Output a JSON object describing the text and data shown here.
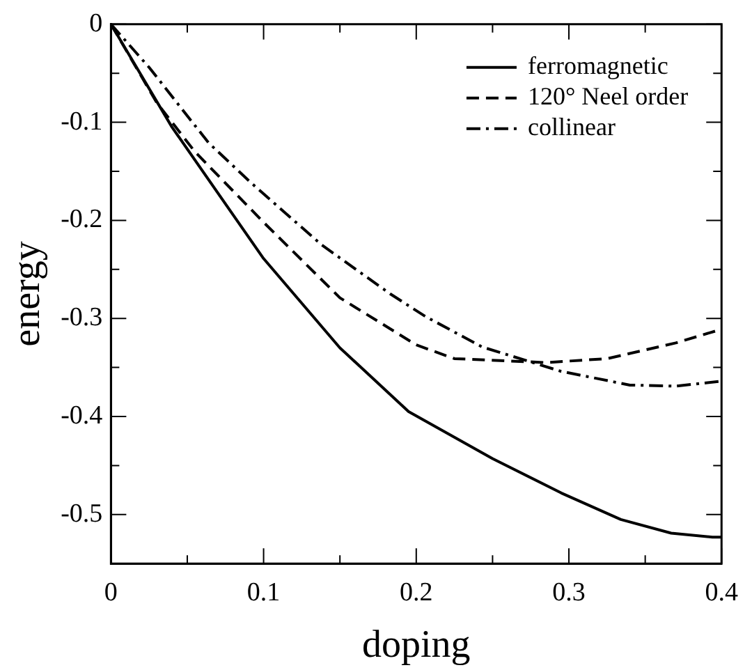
{
  "chart_data": {
    "type": "line",
    "xlabel": "doping",
    "ylabel": "energy",
    "xlim": [
      0,
      0.4
    ],
    "ylim": [
      -0.55,
      0
    ],
    "xticks": [
      0,
      {
        "value": 0.05,
        "label": null
      },
      0.1,
      {
        "value": 0.15,
        "label": null
      },
      0.2,
      {
        "value": 0.25,
        "label": null
      },
      0.3,
      {
        "value": 0.35,
        "label": null
      },
      0.4
    ],
    "yticks": [
      {
        "value": -0.55,
        "label": null
      },
      -0.5,
      {
        "value": -0.45,
        "label": null
      },
      -0.4,
      {
        "value": -0.35,
        "label": null
      },
      -0.3,
      {
        "value": -0.25,
        "label": null
      },
      -0.2,
      {
        "value": -0.15,
        "label": null
      },
      -0.1,
      {
        "value": -0.05,
        "label": null
      },
      0
    ],
    "grid": false,
    "legend": "top right",
    "marker": "none",
    "series": [
      {
        "name": "ferromagnetic",
        "color": "#000000",
        "line_style": "solid",
        "x": [
          0,
          0.04,
          0.1,
          0.15,
          0.195,
          0.25,
          0.295,
          0.334,
          0.367,
          0.394,
          0.4
        ],
        "values": [
          0,
          -0.105,
          -0.239,
          -0.33,
          -0.395,
          -0.443,
          -0.478,
          -0.505,
          -0.519,
          -0.523,
          -0.523
        ]
      },
      {
        "name": "120° Neel order",
        "color": "#000000",
        "line_style": "dashed",
        "x": [
          0,
          0.03,
          0.055,
          0.1,
          0.15,
          0.2,
          0.225,
          0.285,
          0.325,
          0.37,
          0.4
        ],
        "values": [
          0,
          -0.08,
          -0.13,
          -0.202,
          -0.279,
          -0.327,
          -0.341,
          -0.345,
          -0.341,
          -0.325,
          -0.311
        ]
      },
      {
        "name": "collinear",
        "color": "#000000",
        "line_style": "dashdot",
        "x": [
          0,
          0.025,
          0.064,
          0.092,
          0.138,
          0.183,
          0.206,
          0.243,
          0.295,
          0.34,
          0.37,
          0.4
        ],
        "values": [
          0,
          -0.044,
          -0.121,
          -0.162,
          -0.225,
          -0.275,
          -0.298,
          -0.329,
          -0.354,
          -0.368,
          -0.369,
          -0.364
        ]
      }
    ]
  }
}
